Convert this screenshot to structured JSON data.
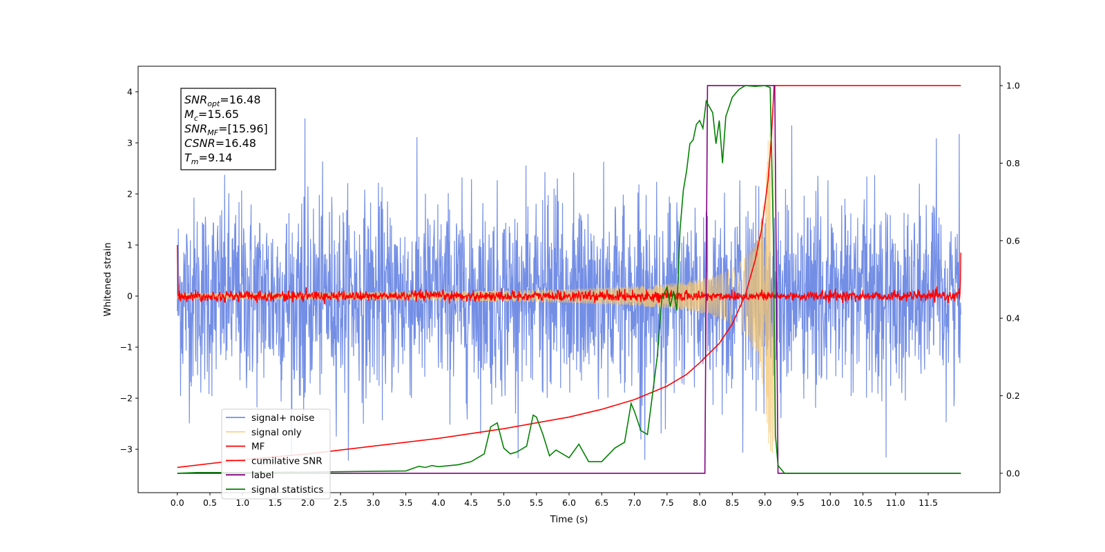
{
  "chart_data": {
    "type": "line",
    "title": "",
    "xlabel": "Time (s)",
    "ylabel": "Whitened strain",
    "xlim": [
      -0.6,
      12.6
    ],
    "ylim": [
      -3.85,
      4.5
    ],
    "y2lim": [
      -0.05,
      1.05
    ],
    "x_ticks": [
      0.0,
      0.5,
      1.0,
      1.5,
      2.0,
      2.5,
      3.0,
      3.5,
      4.0,
      4.5,
      5.0,
      5.5,
      6.0,
      6.5,
      7.0,
      7.5,
      8.0,
      8.5,
      9.0,
      9.5,
      10.0,
      10.5,
      11.0,
      11.5
    ],
    "x_tick_labels": [
      "0.0",
      "0.5",
      "1.0",
      "1.5",
      "2.0",
      "2.5",
      "3.0",
      "3.5",
      "4.0",
      "4.5",
      "5.0",
      "5.5",
      "6.0",
      "6.5",
      "7.0",
      "7.5",
      "8.0",
      "8.5",
      "9.0",
      "9.5",
      "10.0",
      "10.5",
      "11.0",
      "11.5"
    ],
    "y_ticks": [
      -3,
      -2,
      -1,
      0,
      1,
      2,
      3,
      4
    ],
    "y_tick_labels": [
      "−3",
      "−2",
      "−1",
      "0",
      "1",
      "2",
      "3",
      "4"
    ],
    "y2_ticks": [
      0.0,
      0.2,
      0.4,
      0.6,
      0.8,
      1.0
    ],
    "y2_tick_labels": [
      "0.0",
      "0.2",
      "0.4",
      "0.6",
      "0.8",
      "1.0"
    ],
    "grid": false,
    "legend_position": "lower-left",
    "series": [
      {
        "name": "signal+ noise",
        "color": "#6b88e4",
        "axis": "left",
        "kind": "noise",
        "x_range": [
          0,
          12
        ],
        "std": 0.95,
        "min": -3.3,
        "max": 3.5
      },
      {
        "name": "signal only",
        "color": "#f4c56e",
        "axis": "left",
        "kind": "chirp",
        "x_range": [
          0,
          9.14
        ],
        "envelope_peak": 3.2,
        "merger_time": 9.14
      },
      {
        "name": "MF",
        "color": "#ff0000",
        "axis": "left",
        "kind": "noise",
        "x_range": [
          0,
          12
        ],
        "std": 0.05,
        "edge_values": [
          1.0,
          0.85
        ]
      },
      {
        "name": "cumilative SNR",
        "color": "#ff0000",
        "axis": "right",
        "x": [
          0.0,
          1.0,
          2.0,
          3.0,
          4.0,
          5.0,
          6.0,
          6.5,
          7.0,
          7.5,
          7.8,
          8.0,
          8.3,
          8.5,
          8.7,
          8.85,
          8.95,
          9.05,
          9.1,
          9.14,
          12.0
        ],
        "y": [
          0.015,
          0.035,
          0.05,
          0.07,
          0.09,
          0.115,
          0.145,
          0.165,
          0.19,
          0.225,
          0.255,
          0.285,
          0.335,
          0.385,
          0.46,
          0.55,
          0.63,
          0.76,
          0.87,
          1.0,
          1.0
        ]
      },
      {
        "name": "label",
        "color": "#800080",
        "axis": "right",
        "x": [
          0.0,
          8.08,
          8.12,
          9.1,
          9.15,
          9.2,
          12.0
        ],
        "y": [
          0.0,
          0.0,
          1.0,
          1.0,
          1.0,
          0.0,
          0.0
        ]
      },
      {
        "name": "signal statistics",
        "color": "#008000",
        "axis": "right",
        "x": [
          0.0,
          0.3,
          1.0,
          2.0,
          3.0,
          3.5,
          3.7,
          3.8,
          3.9,
          4.0,
          4.3,
          4.5,
          4.7,
          4.8,
          4.9,
          5.0,
          5.1,
          5.2,
          5.35,
          5.45,
          5.5,
          5.6,
          5.7,
          5.8,
          6.0,
          6.15,
          6.3,
          6.5,
          6.7,
          6.85,
          6.95,
          7.0,
          7.1,
          7.2,
          7.35,
          7.42,
          7.5,
          7.55,
          7.6,
          7.65,
          7.7,
          7.75,
          7.8,
          7.85,
          7.9,
          7.95,
          8.0,
          8.05,
          8.1,
          8.2,
          8.25,
          8.3,
          8.35,
          8.4,
          8.5,
          8.6,
          8.7,
          8.85,
          9.0,
          9.08,
          9.13,
          9.16,
          9.2,
          9.3,
          12.0
        ],
        "y": [
          0.0,
          0.002,
          0.002,
          0.003,
          0.005,
          0.006,
          0.018,
          0.015,
          0.02,
          0.017,
          0.022,
          0.03,
          0.05,
          0.12,
          0.13,
          0.065,
          0.05,
          0.055,
          0.07,
          0.15,
          0.145,
          0.1,
          0.045,
          0.06,
          0.04,
          0.075,
          0.03,
          0.03,
          0.065,
          0.08,
          0.18,
          0.16,
          0.11,
          0.1,
          0.3,
          0.45,
          0.48,
          0.43,
          0.47,
          0.42,
          0.63,
          0.73,
          0.78,
          0.85,
          0.86,
          0.9,
          0.91,
          0.89,
          0.96,
          0.93,
          0.85,
          0.91,
          0.8,
          0.92,
          0.97,
          0.99,
          1.0,
          0.998,
          1.0,
          0.995,
          0.6,
          0.1,
          0.02,
          0.0,
          0.0
        ]
      }
    ],
    "annotation": [
      {
        "sym": "SNR",
        "sub": "opt",
        "value": "=16.48"
      },
      {
        "sym": "M",
        "sub": "c",
        "value": "=15.65"
      },
      {
        "sym": "SNR",
        "sub": "MF",
        "value": "=[15.96]"
      },
      {
        "sym": "CSNR",
        "sub": "",
        "value": "=16.48"
      },
      {
        "sym": "T",
        "sub": "m",
        "value": "=9.14"
      }
    ]
  }
}
